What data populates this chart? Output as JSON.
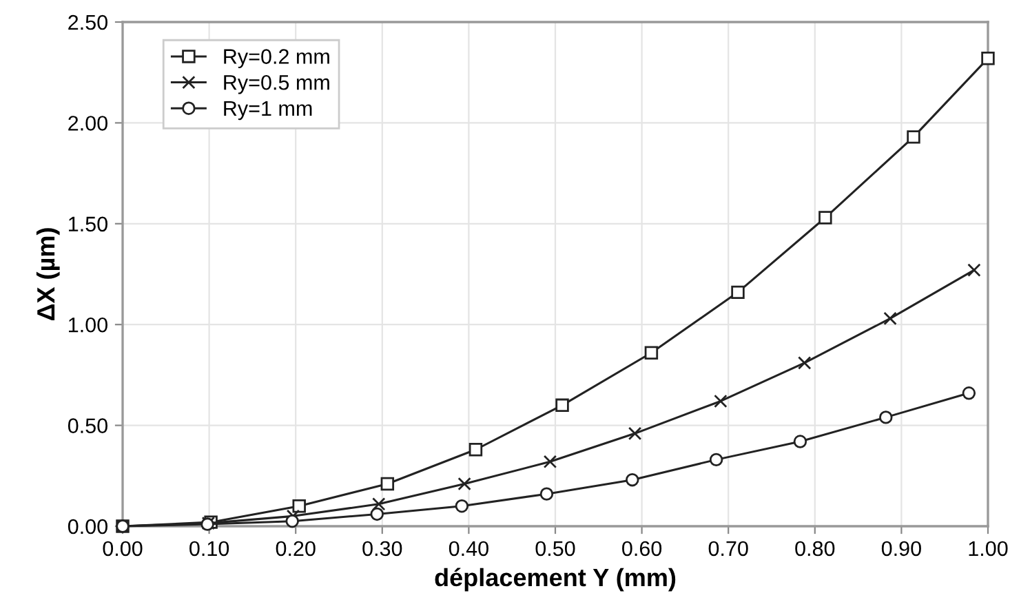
{
  "chart_data": {
    "type": "line",
    "xlabel": "déplacement Y (mm)",
    "ylabel": "ΔX (µm)",
    "xlim": [
      0,
      1
    ],
    "ylim": [
      0,
      2.5
    ],
    "xticks": [
      {
        "value": 0,
        "label": "0.00"
      },
      {
        "value": 0.1,
        "label": "0.10"
      },
      {
        "value": 0.2,
        "label": "0.20"
      },
      {
        "value": 0.3,
        "label": "0.30"
      },
      {
        "value": 0.4,
        "label": "0.40"
      },
      {
        "value": 0.5,
        "label": "0.50"
      },
      {
        "value": 0.6,
        "label": "0.60"
      },
      {
        "value": 0.7,
        "label": "0.70"
      },
      {
        "value": 0.8,
        "label": "0.80"
      },
      {
        "value": 0.9,
        "label": "0.90"
      },
      {
        "value": 1,
        "label": "1.00"
      }
    ],
    "yticks": [
      {
        "value": 0,
        "label": "0.00"
      },
      {
        "value": 0.5,
        "label": "0.50"
      },
      {
        "value": 1,
        "label": "1.00"
      },
      {
        "value": 1.5,
        "label": "1.50"
      },
      {
        "value": 2,
        "label": "2.00"
      },
      {
        "value": 2.5,
        "label": "2.50"
      }
    ],
    "grid": true,
    "legend": "top left",
    "series": [
      {
        "name": "Ry=0.2 mm",
        "color": "#222222",
        "marker": "square",
        "x": [
          0,
          0.102,
          0.204,
          0.306,
          0.408,
          0.508,
          0.611,
          0.711,
          0.812,
          0.914,
          1.0
        ],
        "values": [
          0,
          0.02,
          0.1,
          0.21,
          0.38,
          0.6,
          0.86,
          1.16,
          1.53,
          1.93,
          2.32
        ]
      },
      {
        "name": "Ry=0.5 mm",
        "color": "#222222",
        "marker": "cross",
        "x": [
          0,
          0.099,
          0.197,
          0.296,
          0.395,
          0.494,
          0.592,
          0.691,
          0.788,
          0.887,
          0.984
        ],
        "values": [
          0,
          0.015,
          0.05,
          0.11,
          0.21,
          0.32,
          0.46,
          0.62,
          0.81,
          1.03,
          1.27
        ]
      },
      {
        "name": "Ry=1 mm",
        "color": "#222222",
        "marker": "circle",
        "x": [
          0,
          0.098,
          0.196,
          0.294,
          0.392,
          0.49,
          0.589,
          0.686,
          0.783,
          0.882,
          0.978
        ],
        "values": [
          0,
          0.01,
          0.025,
          0.06,
          0.1,
          0.16,
          0.23,
          0.33,
          0.42,
          0.54,
          0.66
        ]
      }
    ]
  }
}
